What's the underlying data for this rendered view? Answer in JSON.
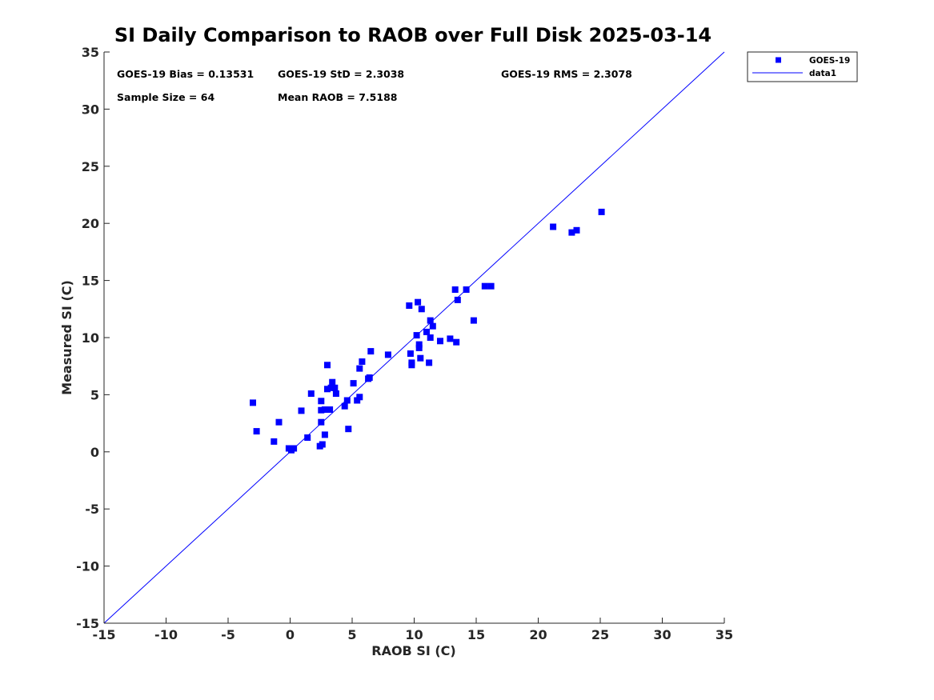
{
  "chart_data": {
    "type": "scatter",
    "title": "SI Daily Comparison to RAOB over Full Disk 2025-03-14",
    "xlabel": "RAOB SI (C)",
    "ylabel": "Measured SI (C)",
    "xlim": [
      -15,
      35
    ],
    "ylim": [
      -15,
      35
    ],
    "xticks": [
      -15,
      -10,
      -5,
      0,
      5,
      10,
      15,
      20,
      25,
      30,
      35
    ],
    "yticks": [
      -15,
      -10,
      -5,
      0,
      5,
      10,
      15,
      20,
      25,
      30,
      35
    ],
    "grid": false,
    "legend_position": "outside top-right",
    "colors": {
      "points": "#0000ff",
      "line": "#0000ff",
      "axes": "#262626"
    },
    "stats": [
      {
        "id": "bias",
        "text": "GOES-19 Bias = 0.13531"
      },
      {
        "id": "std",
        "text": "GOES-19 StD = 2.3038"
      },
      {
        "id": "rms",
        "text": "GOES-19 RMS = 2.3078"
      },
      {
        "id": "sample",
        "text": "Sample Size = 64"
      },
      {
        "id": "mean",
        "text": "Mean RAOB = 7.5188"
      }
    ],
    "series": [
      {
        "name": "GOES-19",
        "marker": "square",
        "points": [
          [
            -3.0,
            4.3
          ],
          [
            -2.7,
            1.8
          ],
          [
            -1.3,
            0.9
          ],
          [
            -0.9,
            2.6
          ],
          [
            -0.1,
            0.3
          ],
          [
            0.1,
            0.15
          ],
          [
            0.3,
            0.3
          ],
          [
            0.9,
            3.6
          ],
          [
            1.4,
            1.25
          ],
          [
            1.7,
            5.1
          ],
          [
            2.4,
            0.5
          ],
          [
            2.5,
            4.45
          ],
          [
            2.5,
            2.6
          ],
          [
            2.5,
            3.65
          ],
          [
            2.6,
            0.65
          ],
          [
            2.8,
            3.7
          ],
          [
            2.8,
            1.5
          ],
          [
            3.0,
            5.5
          ],
          [
            3.0,
            7.6
          ],
          [
            3.2,
            3.7
          ],
          [
            3.3,
            5.6
          ],
          [
            3.4,
            6.1
          ],
          [
            3.6,
            5.6
          ],
          [
            3.7,
            5.1
          ],
          [
            4.4,
            4.0
          ],
          [
            4.6,
            4.5
          ],
          [
            4.7,
            2.0
          ],
          [
            5.1,
            6.0
          ],
          [
            5.4,
            4.5
          ],
          [
            5.6,
            4.8
          ],
          [
            5.6,
            7.3
          ],
          [
            5.8,
            7.9
          ],
          [
            6.3,
            6.4
          ],
          [
            6.4,
            6.5
          ],
          [
            6.5,
            8.8
          ],
          [
            7.9,
            8.5
          ],
          [
            9.6,
            12.8
          ],
          [
            9.7,
            8.6
          ],
          [
            9.8,
            7.6
          ],
          [
            9.8,
            7.8
          ],
          [
            10.2,
            10.2
          ],
          [
            10.3,
            13.1
          ],
          [
            10.4,
            9.1
          ],
          [
            10.4,
            9.4
          ],
          [
            10.5,
            8.2
          ],
          [
            10.6,
            12.5
          ],
          [
            11.0,
            10.5
          ],
          [
            11.2,
            7.8
          ],
          [
            11.3,
            11.5
          ],
          [
            11.3,
            10.0
          ],
          [
            11.5,
            11.0
          ],
          [
            12.1,
            9.7
          ],
          [
            12.9,
            9.9
          ],
          [
            13.3,
            14.2
          ],
          [
            13.4,
            9.6
          ],
          [
            13.5,
            13.3
          ],
          [
            14.2,
            14.2
          ],
          [
            14.8,
            11.5
          ],
          [
            15.7,
            14.5
          ],
          [
            16.2,
            14.5
          ],
          [
            21.2,
            19.7
          ],
          [
            22.7,
            19.2
          ],
          [
            23.1,
            19.4
          ],
          [
            25.1,
            21.0
          ]
        ]
      },
      {
        "name": "data1",
        "type": "line",
        "points": [
          [
            -15,
            -15
          ],
          [
            35,
            35
          ]
        ]
      }
    ]
  }
}
